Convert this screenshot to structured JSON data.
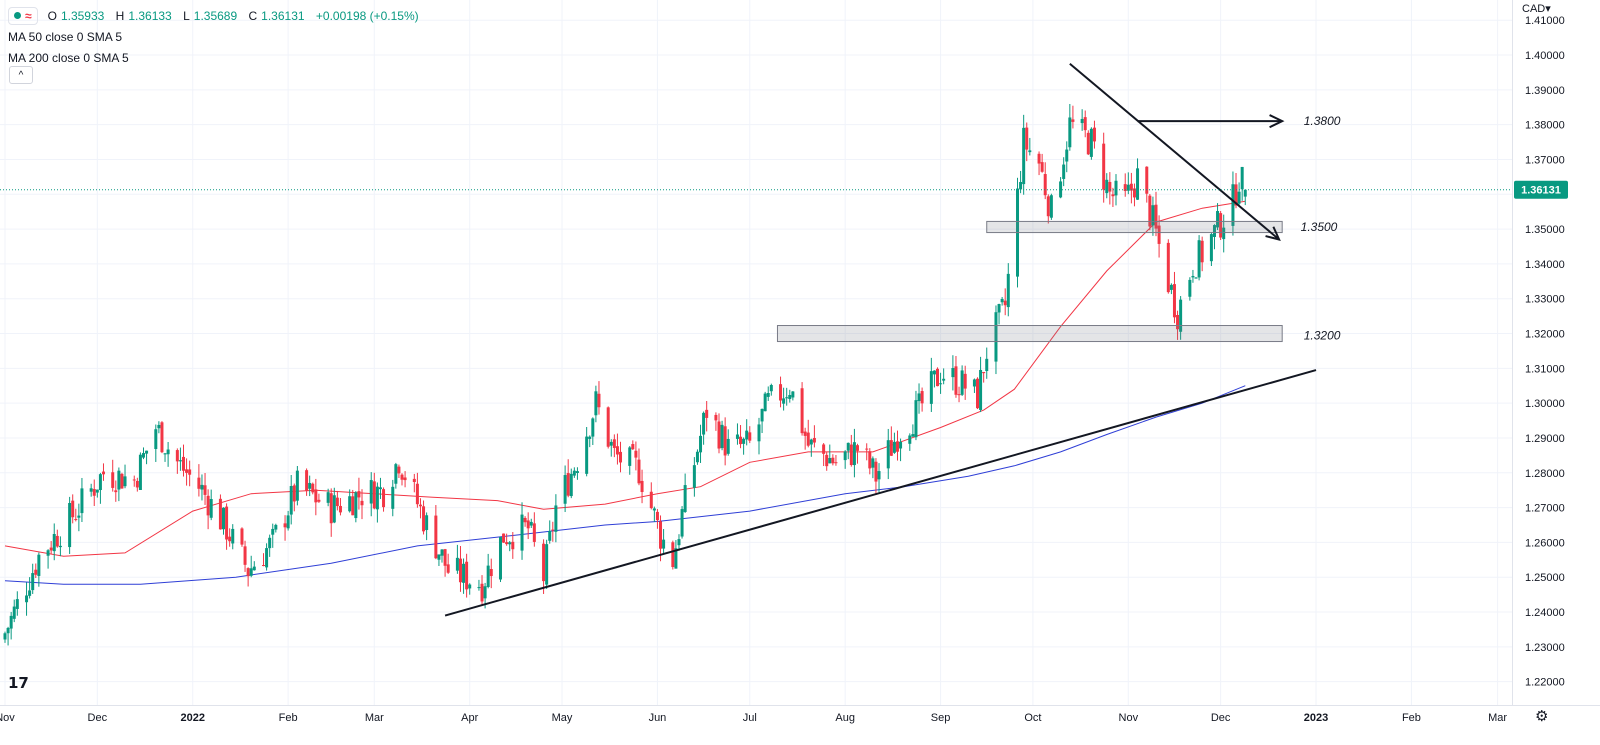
{
  "legend": {
    "open_label": "O",
    "open": "1.35933",
    "high_label": "H",
    "high": "1.36133",
    "low_label": "L",
    "low": "1.35689",
    "close_label": "C",
    "close": "1.36131",
    "change": "+0.00198 (+0.15%)",
    "ma50": "MA 50 close 0 SMA 5",
    "ma200": "MA 200 close 0 SMA 5"
  },
  "currency": "CAD",
  "icons": {
    "collapse": "chevron-up-icon",
    "logo": "tradingview-logo-icon",
    "settings": "gear-icon",
    "currency_dropdown": "chevron-down-icon"
  },
  "colors": {
    "up": "#089981",
    "down": "#f23645",
    "ma50": "#f23645",
    "ma200": "#2f3fd6",
    "price_label": "#089981"
  },
  "chart_data": {
    "type": "candlestick",
    "symbol_quote": "CAD",
    "x_range": [
      "2021-11-01",
      "2023-03-06"
    ],
    "ylim": [
      1.2133,
      1.4158
    ],
    "y_ticks": [
      "1.41000",
      "1.40000",
      "1.39000",
      "1.38000",
      "1.37000",
      "1.36000",
      "1.35000",
      "1.34000",
      "1.33000",
      "1.32000",
      "1.31000",
      "1.30000",
      "1.29000",
      "1.28000",
      "1.27000",
      "1.26000",
      "1.25000",
      "1.24000",
      "1.23000",
      "1.22000"
    ],
    "x_ticks": [
      {
        "label": "Nov",
        "date": "2021-11-01"
      },
      {
        "label": "Dec",
        "date": "2021-12-01"
      },
      {
        "label": "2022",
        "date": "2022-01-01"
      },
      {
        "label": "Feb",
        "date": "2022-02-01"
      },
      {
        "label": "Mar",
        "date": "2022-03-01"
      },
      {
        "label": "Apr",
        "date": "2022-04-01"
      },
      {
        "label": "May",
        "date": "2022-05-01"
      },
      {
        "label": "Jun",
        "date": "2022-06-01"
      },
      {
        "label": "Jul",
        "date": "2022-07-01"
      },
      {
        "label": "Aug",
        "date": "2022-08-01"
      },
      {
        "label": "Sep",
        "date": "2022-09-01"
      },
      {
        "label": "Oct",
        "date": "2022-10-01"
      },
      {
        "label": "Nov",
        "date": "2022-11-01"
      },
      {
        "label": "Dec",
        "date": "2022-12-01"
      },
      {
        "label": "2023",
        "date": "2023-01-01"
      },
      {
        "label": "Feb",
        "date": "2023-02-01"
      },
      {
        "label": "Mar",
        "date": "2023-03-01"
      }
    ],
    "last_price": "1.36131",
    "last_price_value": 1.36131,
    "anchors": [
      [
        "2021-11-01",
        1.234
      ],
      [
        "2021-11-12",
        1.256
      ],
      [
        "2021-11-25",
        1.27
      ],
      [
        "2021-12-03",
        1.28
      ],
      [
        "2021-12-13",
        1.278
      ],
      [
        "2021-12-20",
        1.293
      ],
      [
        "2021-12-27",
        1.283
      ],
      [
        "2022-01-04",
        1.275
      ],
      [
        "2022-01-12",
        1.264
      ],
      [
        "2022-01-19",
        1.252
      ],
      [
        "2022-01-27",
        1.26
      ],
      [
        "2022-02-04",
        1.276
      ],
      [
        "2022-02-15",
        1.27
      ],
      [
        "2022-02-25",
        1.274
      ],
      [
        "2022-03-04",
        1.275
      ],
      [
        "2022-03-09",
        1.284
      ],
      [
        "2022-03-18",
        1.265
      ],
      [
        "2022-03-25",
        1.252
      ],
      [
        "2022-04-05",
        1.248
      ],
      [
        "2022-04-12",
        1.262
      ],
      [
        "2022-04-20",
        1.264
      ],
      [
        "2022-04-25",
        1.25
      ],
      [
        "2022-04-29",
        1.27
      ],
      [
        "2022-05-06",
        1.284
      ],
      [
        "2022-05-12",
        1.3
      ],
      [
        "2022-05-18",
        1.285
      ],
      [
        "2022-05-26",
        1.281
      ],
      [
        "2022-06-02",
        1.262
      ],
      [
        "2022-06-06",
        1.255
      ],
      [
        "2022-06-09",
        1.268
      ],
      [
        "2022-06-17",
        1.298
      ],
      [
        "2022-06-24",
        1.287
      ],
      [
        "2022-07-01",
        1.288
      ],
      [
        "2022-07-07",
        1.3
      ],
      [
        "2022-07-14",
        1.305
      ],
      [
        "2022-07-20",
        1.288
      ],
      [
        "2022-07-29",
        1.283
      ],
      [
        "2022-08-05",
        1.287
      ],
      [
        "2022-08-11",
        1.279
      ],
      [
        "2022-08-18",
        1.291
      ],
      [
        "2022-08-25",
        1.298
      ],
      [
        "2022-09-01",
        1.309
      ],
      [
        "2022-09-09",
        1.305
      ],
      [
        "2022-09-13",
        1.302
      ],
      [
        "2022-09-16",
        1.315
      ],
      [
        "2022-09-22",
        1.328
      ],
      [
        "2022-09-28",
        1.375
      ],
      [
        "2022-10-03",
        1.369
      ],
      [
        "2022-10-07",
        1.355
      ],
      [
        "2022-10-13",
        1.38
      ],
      [
        "2022-10-20",
        1.375
      ],
      [
        "2022-10-26",
        1.36
      ],
      [
        "2022-10-31",
        1.358
      ],
      [
        "2022-11-04",
        1.365
      ],
      [
        "2022-11-09",
        1.352
      ],
      [
        "2022-11-14",
        1.335
      ],
      [
        "2022-11-17",
        1.326
      ],
      [
        "2022-11-22",
        1.34
      ],
      [
        "2022-11-25",
        1.343
      ],
      [
        "2022-12-01",
        1.352
      ],
      [
        "2022-12-05",
        1.358
      ],
      [
        "2022-12-07",
        1.365
      ],
      [
        "2022-12-09",
        1.3613
      ]
    ],
    "last_candle": {
      "date": "2022-12-09",
      "open": 1.35933,
      "high": 1.36133,
      "low": 1.35689,
      "close": 1.36131
    },
    "series": [
      {
        "name": "MA 50 close 0 SMA 5",
        "color": "#f23645",
        "points": [
          [
            "2021-11-01",
            1.259
          ],
          [
            "2021-11-20",
            1.256
          ],
          [
            "2021-12-10",
            1.257
          ],
          [
            "2022-01-01",
            1.269
          ],
          [
            "2022-01-20",
            1.274
          ],
          [
            "2022-02-10",
            1.275
          ],
          [
            "2022-03-01",
            1.274
          ],
          [
            "2022-03-20",
            1.273
          ],
          [
            "2022-04-10",
            1.272
          ],
          [
            "2022-04-25",
            1.2695
          ],
          [
            "2022-05-15",
            1.271
          ],
          [
            "2022-06-01",
            1.274
          ],
          [
            "2022-06-15",
            1.276
          ],
          [
            "2022-07-01",
            1.283
          ],
          [
            "2022-07-20",
            1.286
          ],
          [
            "2022-08-10",
            1.286
          ],
          [
            "2022-09-01",
            1.293
          ],
          [
            "2022-09-15",
            1.298
          ],
          [
            "2022-09-25",
            1.304
          ],
          [
            "2022-10-10",
            1.322
          ],
          [
            "2022-10-25",
            1.338
          ],
          [
            "2022-11-10",
            1.352
          ],
          [
            "2022-11-25",
            1.356
          ],
          [
            "2022-12-09",
            1.358
          ]
        ]
      },
      {
        "name": "MA 200 close 0 SMA 5",
        "color": "#2f3fd6",
        "points": [
          [
            "2021-11-01",
            1.249
          ],
          [
            "2021-11-20",
            1.248
          ],
          [
            "2021-12-15",
            1.248
          ],
          [
            "2022-01-15",
            1.25
          ],
          [
            "2022-02-15",
            1.254
          ],
          [
            "2022-03-15",
            1.259
          ],
          [
            "2022-04-15",
            1.262
          ],
          [
            "2022-05-15",
            1.265
          ],
          [
            "2022-06-01",
            1.266
          ],
          [
            "2022-07-01",
            1.269
          ],
          [
            "2022-08-01",
            1.274
          ],
          [
            "2022-08-20",
            1.276
          ],
          [
            "2022-09-10",
            1.279
          ],
          [
            "2022-09-25",
            1.282
          ],
          [
            "2022-10-10",
            1.286
          ],
          [
            "2022-10-25",
            1.291
          ],
          [
            "2022-11-10",
            1.296
          ],
          [
            "2022-11-25",
            1.3
          ],
          [
            "2022-12-09",
            1.305
          ]
        ]
      }
    ],
    "annotations": {
      "zones": [
        {
          "from": "2022-07-10",
          "to": "2022-12-21",
          "low": 1.3177,
          "high": 1.3223,
          "label": "1.3200"
        },
        {
          "from": "2022-09-16",
          "to": "2022-12-21",
          "low": 1.349,
          "high": 1.3522,
          "label": "1.3500"
        }
      ],
      "lines": [
        {
          "from": [
            "2022-03-24",
            1.239
          ],
          "to": [
            "2023-01-01",
            1.3095
          ]
        },
        {
          "from": [
            "2022-10-13",
            1.3975
          ],
          "to": [
            "2022-12-20",
            1.347
          ],
          "arrow": true
        },
        {
          "from": [
            "2022-11-04",
            1.381
          ],
          "to": [
            "2022-12-21",
            1.381
          ],
          "arrow": true
        }
      ],
      "level_labels": [
        {
          "text": "1.3800",
          "date": "2022-12-28",
          "price": 1.381
        },
        {
          "text": "1.3500",
          "date": "2022-12-27",
          "price": 1.3506
        },
        {
          "text": "1.3200",
          "date": "2022-12-28",
          "price": 1.3194
        }
      ]
    }
  }
}
